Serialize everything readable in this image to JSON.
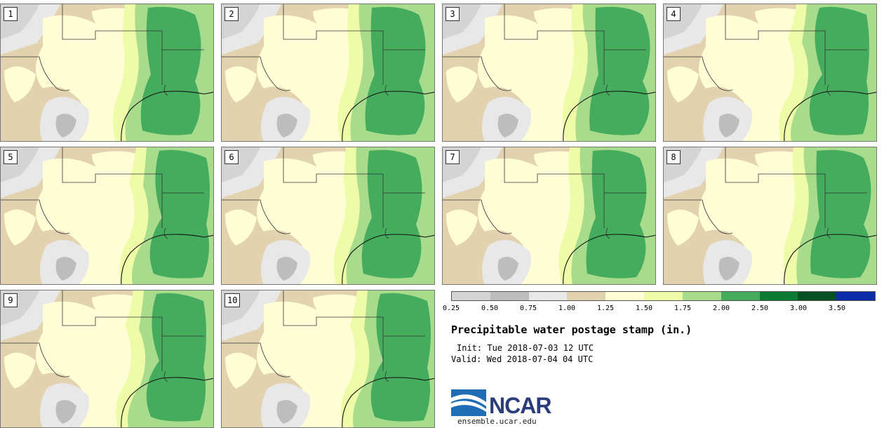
{
  "panel": {
    "stamps": [
      {
        "number": "1"
      },
      {
        "number": "2"
      },
      {
        "number": "3"
      },
      {
        "number": "4"
      },
      {
        "number": "5"
      },
      {
        "number": "6"
      },
      {
        "number": "7"
      },
      {
        "number": "8"
      },
      {
        "number": "9"
      },
      {
        "number": "10"
      }
    ]
  },
  "colorbar": {
    "colors": [
      "#d4d4d4",
      "#bdbdbd",
      "#e8e8e8",
      "#e2d2b0",
      "#fffdd6",
      "#eefca8",
      "#a8dc8c",
      "#45ac5e",
      "#0d7a34",
      "#075024",
      "#0b2ea8"
    ],
    "labels": [
      "0.25",
      "0.50",
      "0.75",
      "1.00",
      "1.25",
      "1.50",
      "1.75",
      "2.00",
      "2.50",
      "3.00",
      "3.50"
    ]
  },
  "title": "Precipitable water postage stamp (in.)",
  "init": "Init: Tue 2018-07-03 12 UTC",
  "valid": "Valid: Wed 2018-07-04 04 UTC",
  "logo": {
    "name": "NCAR",
    "url": "ensemble.ucar.edu",
    "color": "#2a3d7a",
    "accent": "#1f6db4"
  }
}
